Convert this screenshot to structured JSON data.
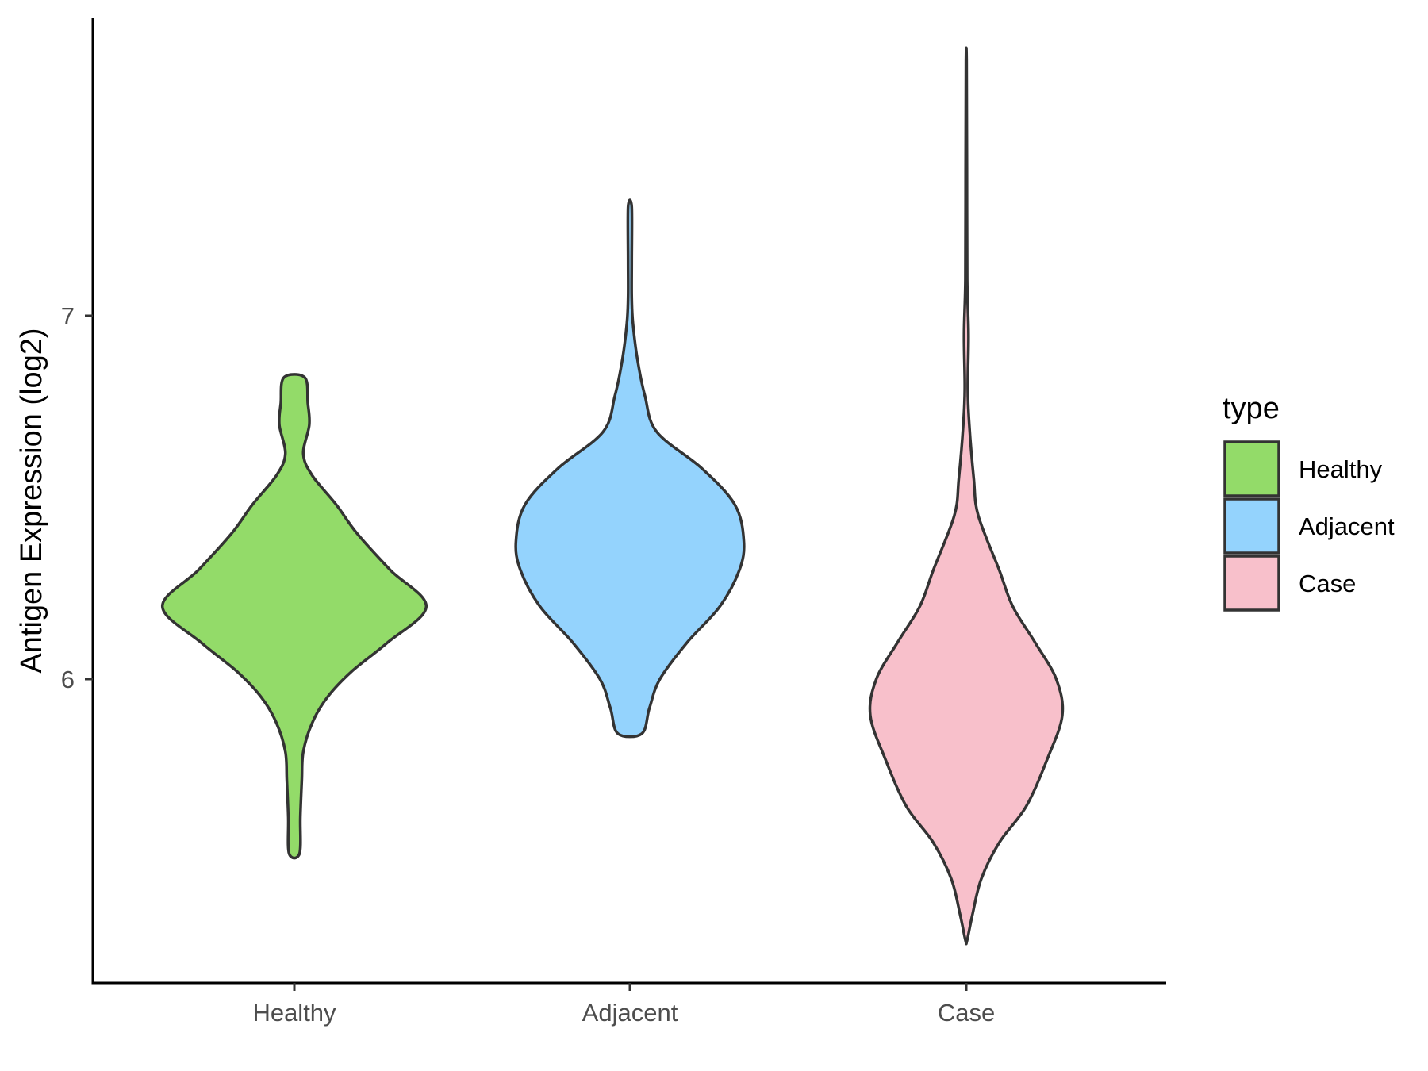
{
  "chart_data": {
    "type": "violin",
    "title": "",
    "xlabel": "",
    "ylabel": "Antigen Expression (log2)",
    "categories": [
      "Healthy",
      "Adjacent",
      "Case"
    ],
    "y_ticks": [
      6,
      7
    ],
    "ylim": [
      5.17,
      7.83
    ],
    "grid": false,
    "legend": {
      "title": "type",
      "position": "right",
      "entries": [
        "Healthy",
        "Adjacent",
        "Case"
      ]
    },
    "colors": {
      "Healthy": "#93DB69",
      "Adjacent": "#94D3FD",
      "Case": "#F8C0CB"
    },
    "series": [
      {
        "name": "Healthy",
        "min": 5.52,
        "max": 6.83,
        "profile": [
          [
            5.52,
            0.035
          ],
          [
            5.62,
            0.04
          ],
          [
            5.72,
            0.05
          ],
          [
            5.8,
            0.06
          ],
          [
            5.88,
            0.12
          ],
          [
            5.95,
            0.22
          ],
          [
            6.02,
            0.38
          ],
          [
            6.1,
            0.62
          ],
          [
            6.2,
            0.88
          ],
          [
            6.3,
            0.64
          ],
          [
            6.4,
            0.42
          ],
          [
            6.48,
            0.28
          ],
          [
            6.56,
            0.12
          ],
          [
            6.62,
            0.06
          ],
          [
            6.7,
            0.1
          ],
          [
            6.76,
            0.09
          ],
          [
            6.83,
            0.07
          ]
        ]
      },
      {
        "name": "Adjacent",
        "min": 5.85,
        "max": 7.3,
        "profile": [
          [
            5.85,
            0.08
          ],
          [
            5.92,
            0.13
          ],
          [
            6.0,
            0.2
          ],
          [
            6.1,
            0.38
          ],
          [
            6.2,
            0.6
          ],
          [
            6.3,
            0.73
          ],
          [
            6.38,
            0.76
          ],
          [
            6.48,
            0.7
          ],
          [
            6.58,
            0.48
          ],
          [
            6.68,
            0.18
          ],
          [
            6.78,
            0.1
          ],
          [
            6.88,
            0.05
          ],
          [
            6.98,
            0.02
          ],
          [
            7.05,
            0.012
          ],
          [
            7.15,
            0.012
          ],
          [
            7.3,
            0.012
          ]
        ]
      },
      {
        "name": "Case",
        "min": 5.28,
        "max": 7.7,
        "profile": [
          [
            5.28,
            0.005
          ],
          [
            5.35,
            0.04
          ],
          [
            5.45,
            0.1
          ],
          [
            5.55,
            0.22
          ],
          [
            5.65,
            0.4
          ],
          [
            5.78,
            0.54
          ],
          [
            5.9,
            0.64
          ],
          [
            6.0,
            0.6
          ],
          [
            6.1,
            0.46
          ],
          [
            6.2,
            0.31
          ],
          [
            6.3,
            0.22
          ],
          [
            6.45,
            0.08
          ],
          [
            6.55,
            0.05
          ],
          [
            6.7,
            0.02
          ],
          [
            6.8,
            0.01
          ],
          [
            6.95,
            0.015
          ],
          [
            7.1,
            0.006
          ],
          [
            7.4,
            0.004
          ],
          [
            7.7,
            0.002
          ]
        ]
      }
    ]
  }
}
